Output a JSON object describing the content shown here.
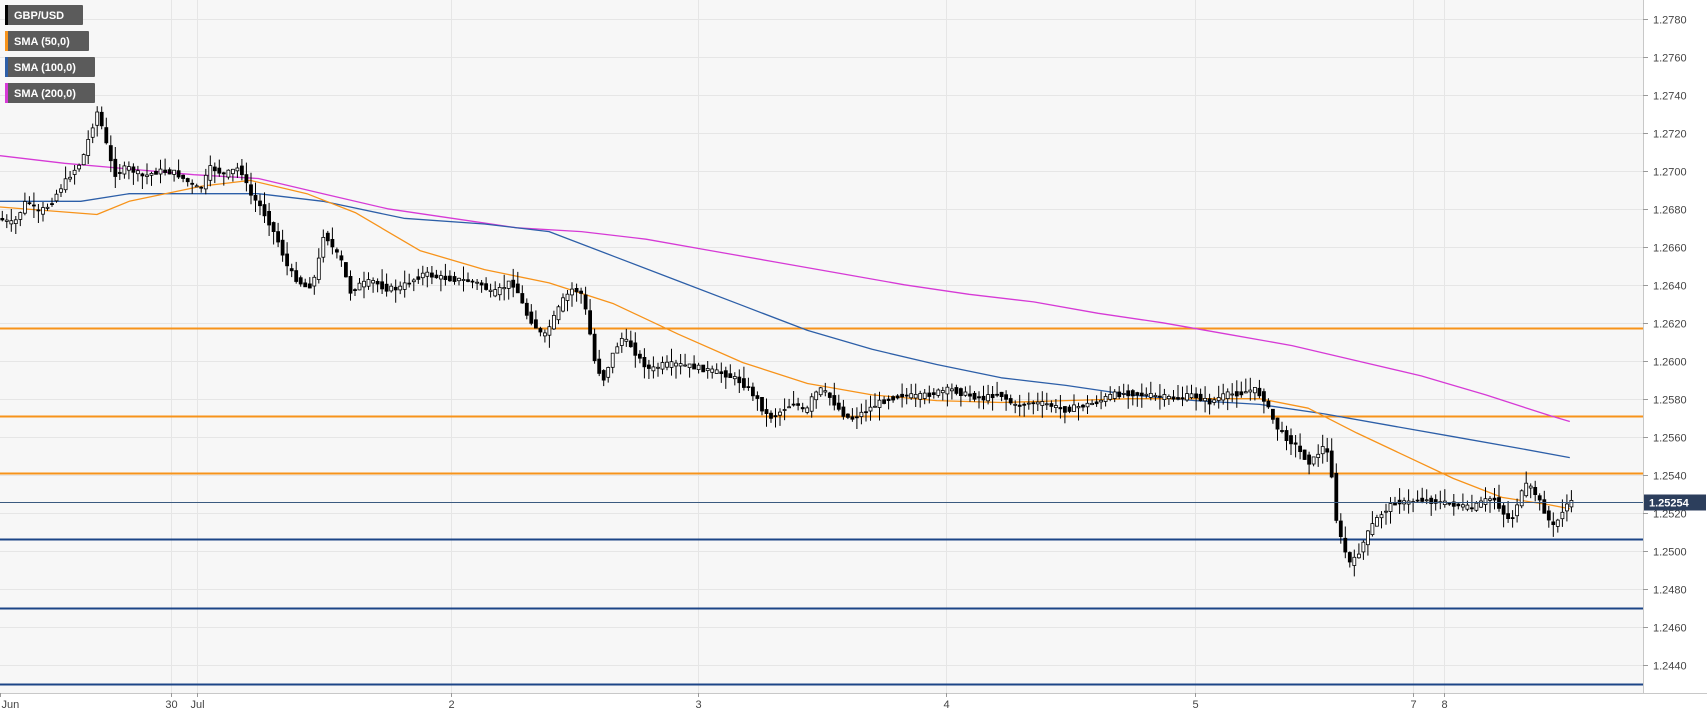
{
  "chart_data": {
    "type": "candlestick",
    "instrument": "GBP/USD",
    "current_price": 1.25254,
    "current_price_label": "1.25254",
    "y_range": [
      1.2425,
      1.279
    ],
    "y_ticks": [
      {
        "value": 1.278,
        "label": "1.2780"
      },
      {
        "value": 1.276,
        "label": "1.2760"
      },
      {
        "value": 1.274,
        "label": "1.2740"
      },
      {
        "value": 1.272,
        "label": "1.2720"
      },
      {
        "value": 1.27,
        "label": "1.2700"
      },
      {
        "value": 1.268,
        "label": "1.2680"
      },
      {
        "value": 1.266,
        "label": "1.2660"
      },
      {
        "value": 1.264,
        "label": "1.2640"
      },
      {
        "value": 1.262,
        "label": "1.2620"
      },
      {
        "value": 1.26,
        "label": "1.2600"
      },
      {
        "value": 1.258,
        "label": "1.2580"
      },
      {
        "value": 1.256,
        "label": "1.2560"
      },
      {
        "value": 1.254,
        "label": "1.2540"
      },
      {
        "value": 1.252,
        "label": "1.2520"
      },
      {
        "value": 1.25,
        "label": "1.2500"
      },
      {
        "value": 1.248,
        "label": "1.2480"
      },
      {
        "value": 1.246,
        "label": "1.2460"
      },
      {
        "value": 1.244,
        "label": "1.2440"
      }
    ],
    "x_range": [
      0,
      1000
    ],
    "x_ticks": [
      {
        "pos": 0,
        "label": "Jun"
      },
      {
        "pos": 106,
        "label": "30"
      },
      {
        "pos": 122,
        "label": "Jul"
      },
      {
        "pos": 279,
        "label": "2"
      },
      {
        "pos": 432,
        "label": "3"
      },
      {
        "pos": 586,
        "label": "4"
      },
      {
        "pos": 740,
        "label": "5"
      },
      {
        "pos": 875,
        "label": "7"
      },
      {
        "pos": 894,
        "label": "8"
      }
    ],
    "legend": [
      {
        "label": "GBP/USD",
        "color": "#000000"
      },
      {
        "label": "SMA (50,0)",
        "color": "#f7931a"
      },
      {
        "label": "SMA (100,0)",
        "color": "#2d5fa8"
      },
      {
        "label": "SMA (200,0)",
        "color": "#d63ad6"
      }
    ],
    "resistance_levels": [
      1.2617,
      1.2571,
      1.2541
    ],
    "support_levels": [
      1.2506,
      1.247,
      1.243
    ],
    "colors": {
      "resistance": "#f7931a",
      "support": "#1c4587",
      "sma50": "#f7931a",
      "sma100": "#2d5fa8",
      "sma200": "#d63ad6",
      "price_line": "#3b5a80",
      "price_tag": "#2c3e5c",
      "candle_up": "#ffffff",
      "candle_down": "#000000",
      "grid": "#e6e6e6",
      "plot_bg": "#f7f7f7"
    },
    "price_path": [
      [
        0,
        1.2675
      ],
      [
        10,
        1.2672
      ],
      [
        18,
        1.2685
      ],
      [
        25,
        1.2678
      ],
      [
        32,
        1.2682
      ],
      [
        38,
        1.269
      ],
      [
        45,
        1.2698
      ],
      [
        52,
        1.2705
      ],
      [
        58,
        1.2722
      ],
      [
        62,
        1.2732
      ],
      [
        66,
        1.2718
      ],
      [
        72,
        1.2698
      ],
      [
        80,
        1.2702
      ],
      [
        90,
        1.2697
      ],
      [
        100,
        1.27
      ],
      [
        110,
        1.2699
      ],
      [
        118,
        1.2694
      ],
      [
        125,
        1.269
      ],
      [
        132,
        1.2702
      ],
      [
        140,
        1.2698
      ],
      [
        150,
        1.2702
      ],
      [
        156,
        1.2688
      ],
      [
        162,
        1.2682
      ],
      [
        168,
        1.2673
      ],
      [
        174,
        1.2662
      ],
      [
        180,
        1.2648
      ],
      [
        186,
        1.2642
      ],
      [
        192,
        1.2638
      ],
      [
        197,
        1.2645
      ],
      [
        202,
        1.2668
      ],
      [
        207,
        1.266
      ],
      [
        213,
        1.2652
      ],
      [
        218,
        1.2636
      ],
      [
        224,
        1.264
      ],
      [
        232,
        1.2642
      ],
      [
        240,
        1.2638
      ],
      [
        248,
        1.2638
      ],
      [
        256,
        1.2642
      ],
      [
        264,
        1.2646
      ],
      [
        272,
        1.2644
      ],
      [
        282,
        1.2643
      ],
      [
        292,
        1.2642
      ],
      [
        300,
        1.264
      ],
      [
        306,
        1.2635
      ],
      [
        312,
        1.2638
      ],
      [
        318,
        1.2642
      ],
      [
        322,
        1.2636
      ],
      [
        327,
        1.2625
      ],
      [
        333,
        1.2618
      ],
      [
        338,
        1.2612
      ],
      [
        344,
        1.2622
      ],
      [
        350,
        1.2632
      ],
      [
        356,
        1.2638
      ],
      [
        362,
        1.2635
      ],
      [
        366,
        1.2618
      ],
      [
        370,
        1.2598
      ],
      [
        375,
        1.259
      ],
      [
        380,
        1.2602
      ],
      [
        386,
        1.2612
      ],
      [
        392,
        1.2608
      ],
      [
        398,
        1.26
      ],
      [
        404,
        1.2595
      ],
      [
        412,
        1.2598
      ],
      [
        420,
        1.2598
      ],
      [
        430,
        1.2597
      ],
      [
        440,
        1.2595
      ],
      [
        450,
        1.2593
      ],
      [
        458,
        1.259
      ],
      [
        464,
        1.2586
      ],
      [
        470,
        1.258
      ],
      [
        475,
        1.2572
      ],
      [
        480,
        1.257
      ],
      [
        487,
        1.2575
      ],
      [
        494,
        1.2578
      ],
      [
        500,
        1.2572
      ],
      [
        505,
        1.2582
      ],
      [
        510,
        1.2585
      ],
      [
        516,
        1.258
      ],
      [
        522,
        1.2573
      ],
      [
        528,
        1.2569
      ],
      [
        534,
        1.2572
      ],
      [
        540,
        1.2575
      ],
      [
        546,
        1.2578
      ],
      [
        552,
        1.258
      ],
      [
        560,
        1.2582
      ],
      [
        570,
        1.2581
      ],
      [
        580,
        1.2583
      ],
      [
        590,
        1.2585
      ],
      [
        600,
        1.2582
      ],
      [
        610,
        1.258
      ],
      [
        620,
        1.2583
      ],
      [
        630,
        1.2576
      ],
      [
        640,
        1.2578
      ],
      [
        650,
        1.2577
      ],
      [
        660,
        1.2574
      ],
      [
        670,
        1.2576
      ],
      [
        680,
        1.2578
      ],
      [
        690,
        1.2582
      ],
      [
        700,
        1.2583
      ],
      [
        710,
        1.2582
      ],
      [
        720,
        1.2581
      ],
      [
        730,
        1.258
      ],
      [
        740,
        1.2582
      ],
      [
        750,
        1.2578
      ],
      [
        760,
        1.2582
      ],
      [
        770,
        1.2583
      ],
      [
        778,
        1.2585
      ],
      [
        784,
        1.258
      ],
      [
        788,
        1.2572
      ],
      [
        792,
        1.2565
      ],
      [
        797,
        1.256
      ],
      [
        803,
        1.2556
      ],
      [
        808,
        1.255
      ],
      [
        813,
        1.2546
      ],
      [
        818,
        1.2552
      ],
      [
        822,
        1.2556
      ],
      [
        826,
        1.254
      ],
      [
        829,
        1.2515
      ],
      [
        832,
        1.2505
      ],
      [
        835,
        1.2498
      ],
      [
        838,
        1.2492
      ],
      [
        842,
        1.2498
      ],
      [
        846,
        1.2505
      ],
      [
        850,
        1.2512
      ],
      [
        855,
        1.2518
      ],
      [
        860,
        1.2522
      ],
      [
        866,
        1.2526
      ],
      [
        872,
        1.2525
      ],
      [
        880,
        1.2527
      ],
      [
        888,
        1.2526
      ],
      [
        896,
        1.2525
      ],
      [
        904,
        1.2524
      ],
      [
        912,
        1.2522
      ],
      [
        920,
        1.2526
      ],
      [
        926,
        1.2528
      ],
      [
        932,
        1.252
      ],
      [
        937,
        1.2515
      ],
      [
        942,
        1.2528
      ],
      [
        947,
        1.2535
      ],
      [
        952,
        1.253
      ],
      [
        957,
        1.2522
      ],
      [
        961,
        1.2515
      ],
      [
        964,
        1.2512
      ],
      [
        968,
        1.252
      ],
      [
        972,
        1.2525
      ]
    ],
    "sma50_path": [
      [
        0,
        1.2681
      ],
      [
        60,
        1.2677
      ],
      [
        80,
        1.2684
      ],
      [
        125,
        1.2692
      ],
      [
        155,
        1.2695
      ],
      [
        190,
        1.2688
      ],
      [
        220,
        1.2678
      ],
      [
        260,
        1.2658
      ],
      [
        300,
        1.2648
      ],
      [
        340,
        1.2641
      ],
      [
        380,
        1.263
      ],
      [
        420,
        1.2614
      ],
      [
        460,
        1.2599
      ],
      [
        500,
        1.2588
      ],
      [
        540,
        1.2582
      ],
      [
        580,
        1.2579
      ],
      [
        620,
        1.2578
      ],
      [
        660,
        1.2579
      ],
      [
        700,
        1.258
      ],
      [
        740,
        1.258
      ],
      [
        780,
        1.258
      ],
      [
        810,
        1.2575
      ],
      [
        840,
        1.2562
      ],
      [
        870,
        1.255
      ],
      [
        900,
        1.2538
      ],
      [
        930,
        1.2528
      ],
      [
        960,
        1.2524
      ],
      [
        972,
        1.2522
      ]
    ],
    "sma100_path": [
      [
        0,
        1.2684
      ],
      [
        50,
        1.2684
      ],
      [
        80,
        1.2688
      ],
      [
        130,
        1.2688
      ],
      [
        160,
        1.2688
      ],
      [
        200,
        1.2684
      ],
      [
        250,
        1.2675
      ],
      [
        300,
        1.2672
      ],
      [
        340,
        1.2668
      ],
      [
        380,
        1.2655
      ],
      [
        420,
        1.2642
      ],
      [
        460,
        1.2629
      ],
      [
        500,
        1.2616
      ],
      [
        540,
        1.2606
      ],
      [
        580,
        1.2598
      ],
      [
        620,
        1.2591
      ],
      [
        660,
        1.2587
      ],
      [
        700,
        1.2582
      ],
      [
        740,
        1.2579
      ],
      [
        780,
        1.2577
      ],
      [
        820,
        1.2572
      ],
      [
        860,
        1.2566
      ],
      [
        900,
        1.256
      ],
      [
        940,
        1.2554
      ],
      [
        972,
        1.2549
      ]
    ],
    "sma200_path": [
      [
        0,
        1.2708
      ],
      [
        40,
        1.2704
      ],
      [
        80,
        1.2701
      ],
      [
        120,
        1.2698
      ],
      [
        160,
        1.2696
      ],
      [
        200,
        1.2688
      ],
      [
        240,
        1.268
      ],
      [
        280,
        1.2675
      ],
      [
        320,
        1.267
      ],
      [
        360,
        1.2668
      ],
      [
        400,
        1.2664
      ],
      [
        440,
        1.2658
      ],
      [
        480,
        1.2652
      ],
      [
        520,
        1.2646
      ],
      [
        560,
        1.264
      ],
      [
        600,
        1.2635
      ],
      [
        640,
        1.2631
      ],
      [
        680,
        1.2625
      ],
      [
        720,
        1.262
      ],
      [
        760,
        1.2614
      ],
      [
        800,
        1.2608
      ],
      [
        840,
        1.26
      ],
      [
        880,
        1.2592
      ],
      [
        920,
        1.2582
      ],
      [
        960,
        1.2571
      ],
      [
        972,
        1.2568
      ]
    ]
  }
}
